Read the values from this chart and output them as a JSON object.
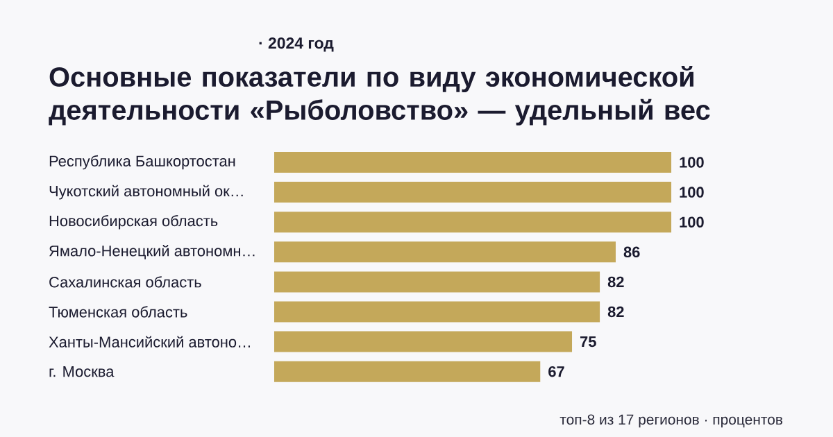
{
  "chart_data": {
    "type": "bar",
    "orientation": "horizontal",
    "title": "Основные показатели по виду экономической деятельности «Рыболовство» — удельный вес",
    "subtitle": "· 2024 год",
    "categories": [
      "Республика Башкортостан",
      "Чукотский автономный ок…",
      "Новосибирская область",
      "Ямало-Ненецкий автономн…",
      "Сахалинская область",
      "Тюменская область",
      "Ханты-Мансийский автоно…",
      "г. Москва"
    ],
    "values": [
      100,
      100,
      100,
      86,
      82,
      82,
      75,
      67
    ],
    "color": "#c4a85a",
    "xlim": [
      0,
      100
    ],
    "data_labels": true,
    "annotations": [
      "топ-8 из 17 регионов · процентов"
    ]
  }
}
